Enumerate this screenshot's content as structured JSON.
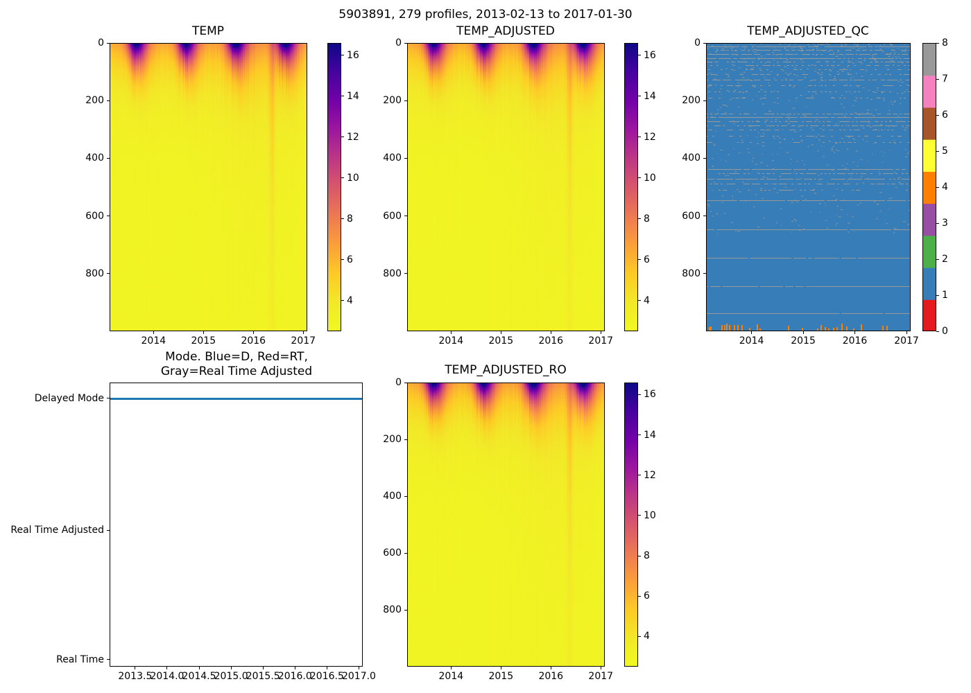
{
  "figure": {
    "suptitle": "5903891, 279 profiles, 2013-02-13 to 2017-01-30",
    "background": "#ffffff"
  },
  "chart_data": [
    {
      "id": "temp",
      "type": "heatmap",
      "title": "TEMP",
      "x_range": [
        2013.12,
        2017.08
      ],
      "y_range": [
        0,
        1000
      ],
      "x_ticks": [
        2014,
        2015,
        2016,
        2017
      ],
      "x_tick_labels": [
        "2014",
        "2015",
        "2016",
        "2017"
      ],
      "y_ticks": [
        0,
        200,
        400,
        600,
        800
      ],
      "y_tick_labels": [
        "0",
        "200",
        "400",
        "600",
        "800"
      ],
      "colormap": "plasma_reversed",
      "vmin": 2.5,
      "vmax": 16.6,
      "colorbar_ticks": [
        4,
        6,
        8,
        10,
        12,
        14,
        16
      ],
      "colorbar_tick_labels": [
        "4",
        "6",
        "8",
        "10",
        "12",
        "14",
        "16"
      ],
      "model_ref": "seasonal_temp",
      "description": "Temperature vs time (2013-2017) and pressure (0-1000 dbar). Warm (~16-17, dark navy/purple) surface layer each late summer (~Aug), cooling through orange (~6-8) to yellow (~3) below 300 dbar; warm column anomaly near 2016.4."
    },
    {
      "id": "temp_adjusted",
      "type": "heatmap",
      "title": "TEMP_ADJUSTED",
      "x_range": [
        2013.12,
        2017.08
      ],
      "y_range": [
        0,
        1000
      ],
      "x_ticks": [
        2014,
        2015,
        2016,
        2017
      ],
      "x_tick_labels": [
        "2014",
        "2015",
        "2016",
        "2017"
      ],
      "y_ticks": [
        0,
        200,
        400,
        600,
        800
      ],
      "y_tick_labels": [
        "0",
        "200",
        "400",
        "600",
        "800"
      ],
      "colormap": "plasma_reversed",
      "vmin": 2.5,
      "vmax": 16.6,
      "colorbar_ticks": [
        4,
        6,
        8,
        10,
        12,
        14,
        16
      ],
      "colorbar_tick_labels": [
        "4",
        "6",
        "8",
        "10",
        "12",
        "14",
        "16"
      ],
      "model_ref": "seasonal_temp",
      "description": "Adjusted temperature section; visually identical to TEMP."
    },
    {
      "id": "temp_adjusted_qc",
      "type": "heatmap-categorical",
      "title": "TEMP_ADJUSTED_QC",
      "x_range": [
        2013.12,
        2017.08
      ],
      "y_range": [
        0,
        1000
      ],
      "x_ticks": [
        2014,
        2015,
        2016,
        2017
      ],
      "x_tick_labels": [
        "2014",
        "2015",
        "2016",
        "2017"
      ],
      "y_ticks": [
        0,
        200,
        400,
        600,
        800
      ],
      "y_tick_labels": [
        "0",
        "200",
        "400",
        "600",
        "800"
      ],
      "categories": [
        0,
        1,
        2,
        3,
        4,
        5,
        6,
        7,
        8
      ],
      "colorbar_tick_labels": [
        "0",
        "1",
        "2",
        "3",
        "4",
        "5",
        "6",
        "7",
        "8"
      ],
      "category_colors": [
        "#e41a1c",
        "#377eb8",
        "#4daf4a",
        "#984ea3",
        "#ff7f00",
        "#ffff33",
        "#a65628",
        "#f781bf",
        "#999999"
      ],
      "dominant_value": 1,
      "dashed_line_value": 8,
      "bottom_flag_value": 4,
      "model_ref": "qc_pattern",
      "description": "QC flags: field is almost entirely flag 1 (blue); dashed horizontal lines of flag 8 (gray) at many pressure levels, sparse gray speckles in upper half, and short orange flag-4 ticks along the bottom edge."
    },
    {
      "id": "mode",
      "type": "line",
      "title": "Mode. Blue=D, Red=RT, Gray=Real Time Adjusted",
      "title_lines": [
        "Mode. Blue=D, Red=RT,",
        "Gray=Real Time Adjusted"
      ],
      "x_range": [
        2013.1,
        2017.06
      ],
      "x_ticks": [
        2013.5,
        2014.0,
        2014.5,
        2015.0,
        2015.5,
        2016.0,
        2016.5,
        2017.0
      ],
      "x_tick_labels": [
        "2013.5",
        "2014.0",
        "2014.5",
        "2015.0",
        "2015.5",
        "2016.0",
        "2016.5",
        "2017.0"
      ],
      "y_tick_labels": [
        "Delayed Mode",
        "Real Time Adjusted",
        "Real Time"
      ],
      "series": [
        {
          "name": "mode",
          "constant_value": "Delayed Mode",
          "color": "#1f77b4",
          "note": "flat line at Delayed Mode across the whole record"
        }
      ]
    },
    {
      "id": "temp_adjusted_ro",
      "type": "heatmap",
      "title": "TEMP_ADJUSTED_RO",
      "x_range": [
        2013.12,
        2017.08
      ],
      "y_range": [
        0,
        1000
      ],
      "x_ticks": [
        2014,
        2015,
        2016,
        2017
      ],
      "x_tick_labels": [
        "2014",
        "2015",
        "2016",
        "2017"
      ],
      "y_ticks": [
        0,
        200,
        400,
        600,
        800
      ],
      "y_tick_labels": [
        "0",
        "200",
        "400",
        "600",
        "800"
      ],
      "colormap": "plasma_reversed",
      "vmin": 2.5,
      "vmax": 16.6,
      "colorbar_ticks": [
        4,
        6,
        8,
        10,
        12,
        14,
        16
      ],
      "colorbar_tick_labels": [
        "4",
        "6",
        "8",
        "10",
        "12",
        "14",
        "16"
      ],
      "model_ref": "seasonal_temp",
      "description": "Reported-original adjusted temperature section; visually identical to TEMP."
    }
  ],
  "models": {
    "seasonal_temp": {
      "deep_temp": 2.9,
      "base_amp": 3.2,
      "base_scale": 130,
      "seasonal_amp": 9.8,
      "peak_phase": 0.63,
      "kappa": 2.2,
      "mix_depth": 62,
      "mix_pow": 1.15,
      "mix_jitter": 0.5,
      "tail_amp": 3.4,
      "tail_phase": 0.78,
      "tail_kappa": 1.6,
      "tail_depth": 110,
      "broad_amp": 0.85,
      "broad_center": 2016.1,
      "broad_width": 0.85,
      "broad_zscale": 500,
      "spike_amp": 1.7,
      "spike_center": 2016.38,
      "spike_width": 0.06,
      "spike_zscale": 900,
      "col_noise": 0.5,
      "pix_noise": 0.18
    },
    "qc_pattern": {
      "gray_rows": [
        [
          0.012,
          0.85
        ],
        [
          0.025,
          0.55
        ],
        [
          0.038,
          0.65
        ],
        [
          0.052,
          0.85
        ],
        [
          0.065,
          0.5
        ],
        [
          0.078,
          0.35
        ],
        [
          0.092,
          0.3
        ],
        [
          0.108,
          0.3
        ],
        [
          0.128,
          0.6
        ],
        [
          0.148,
          0.35
        ],
        [
          0.168,
          0.25
        ],
        [
          0.19,
          0.2
        ],
        [
          0.245,
          0.5
        ],
        [
          0.258,
          0.9
        ],
        [
          0.272,
          0.55
        ],
        [
          0.287,
          0.6
        ],
        [
          0.302,
          0.35
        ],
        [
          0.322,
          0.25
        ],
        [
          0.345,
          0.18
        ],
        [
          0.438,
          0.9
        ],
        [
          0.452,
          0.55
        ],
        [
          0.472,
          0.8
        ],
        [
          0.49,
          0.5
        ],
        [
          0.512,
          0.3
        ],
        [
          0.548,
          0.93
        ],
        [
          0.649,
          0.93
        ],
        [
          0.748,
          0.93
        ],
        [
          0.845,
          0.93
        ],
        [
          0.94,
          0.96
        ]
      ],
      "speckle_count": 650,
      "speckle_bias": 1.8,
      "speckle_max_depth": 0.66,
      "bottom_ticks_x": [
        0.012,
        0.022,
        0.075,
        0.088,
        0.1,
        0.112,
        0.135,
        0.152,
        0.172,
        0.21,
        0.248,
        0.262,
        0.4,
        0.468,
        0.545,
        0.562,
        0.582,
        0.6,
        0.622,
        0.638,
        0.662,
        0.688,
        0.72,
        0.76,
        0.865,
        0.885
      ]
    }
  },
  "colors": {
    "mode_line": "#1f77b4",
    "axis": "#000000",
    "plasma_stops": [
      [
        13,
        8,
        135
      ],
      [
        70,
        3,
        159
      ],
      [
        114,
        1,
        168
      ],
      [
        156,
        23,
        158
      ],
      [
        189,
        55,
        134
      ],
      [
        216,
        87,
        107
      ],
      [
        237,
        121,
        83
      ],
      [
        251,
        159,
        58
      ],
      [
        253,
        202,
        38
      ],
      [
        242,
        232,
        40
      ],
      [
        240,
        249,
        33
      ]
    ]
  }
}
